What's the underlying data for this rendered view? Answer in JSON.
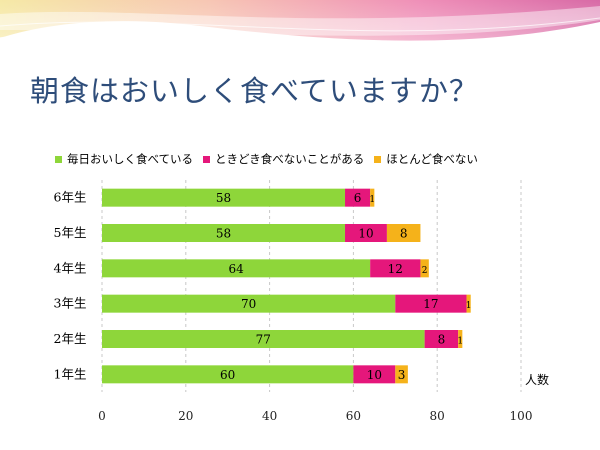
{
  "slide": {
    "title": "朝食はおいしく食べていますか？"
  },
  "colors": {
    "green": "#8ed63a",
    "magenta": "#e5177b",
    "orange": "#f5b21a",
    "title": "#2e4d7a"
  },
  "chart_data": {
    "type": "bar",
    "orientation": "horizontal",
    "stacked": true,
    "title": "",
    "xlabel": "人数",
    "ylabel": "",
    "xlim": [
      0,
      100
    ],
    "x_ticks": [
      "0",
      "20",
      "40",
      "60",
      "80",
      "100"
    ],
    "grid": "vertical dashed",
    "legend_position": "top",
    "categories": [
      "6年生",
      "5年生",
      "4年生",
      "3年生",
      "2年生",
      "1年生"
    ],
    "series": [
      {
        "name": "毎日おいしく食べている",
        "color": "#8ed63a",
        "values": [
          58,
          58,
          64,
          70,
          77,
          60
        ]
      },
      {
        "name": "ときどき食べないことがある",
        "color": "#e5177b",
        "values": [
          6,
          10,
          12,
          17,
          8,
          10
        ]
      },
      {
        "name": "ほとんど食べない",
        "color": "#f5b21a",
        "values": [
          1,
          8,
          2,
          1,
          1,
          3
        ]
      }
    ]
  }
}
